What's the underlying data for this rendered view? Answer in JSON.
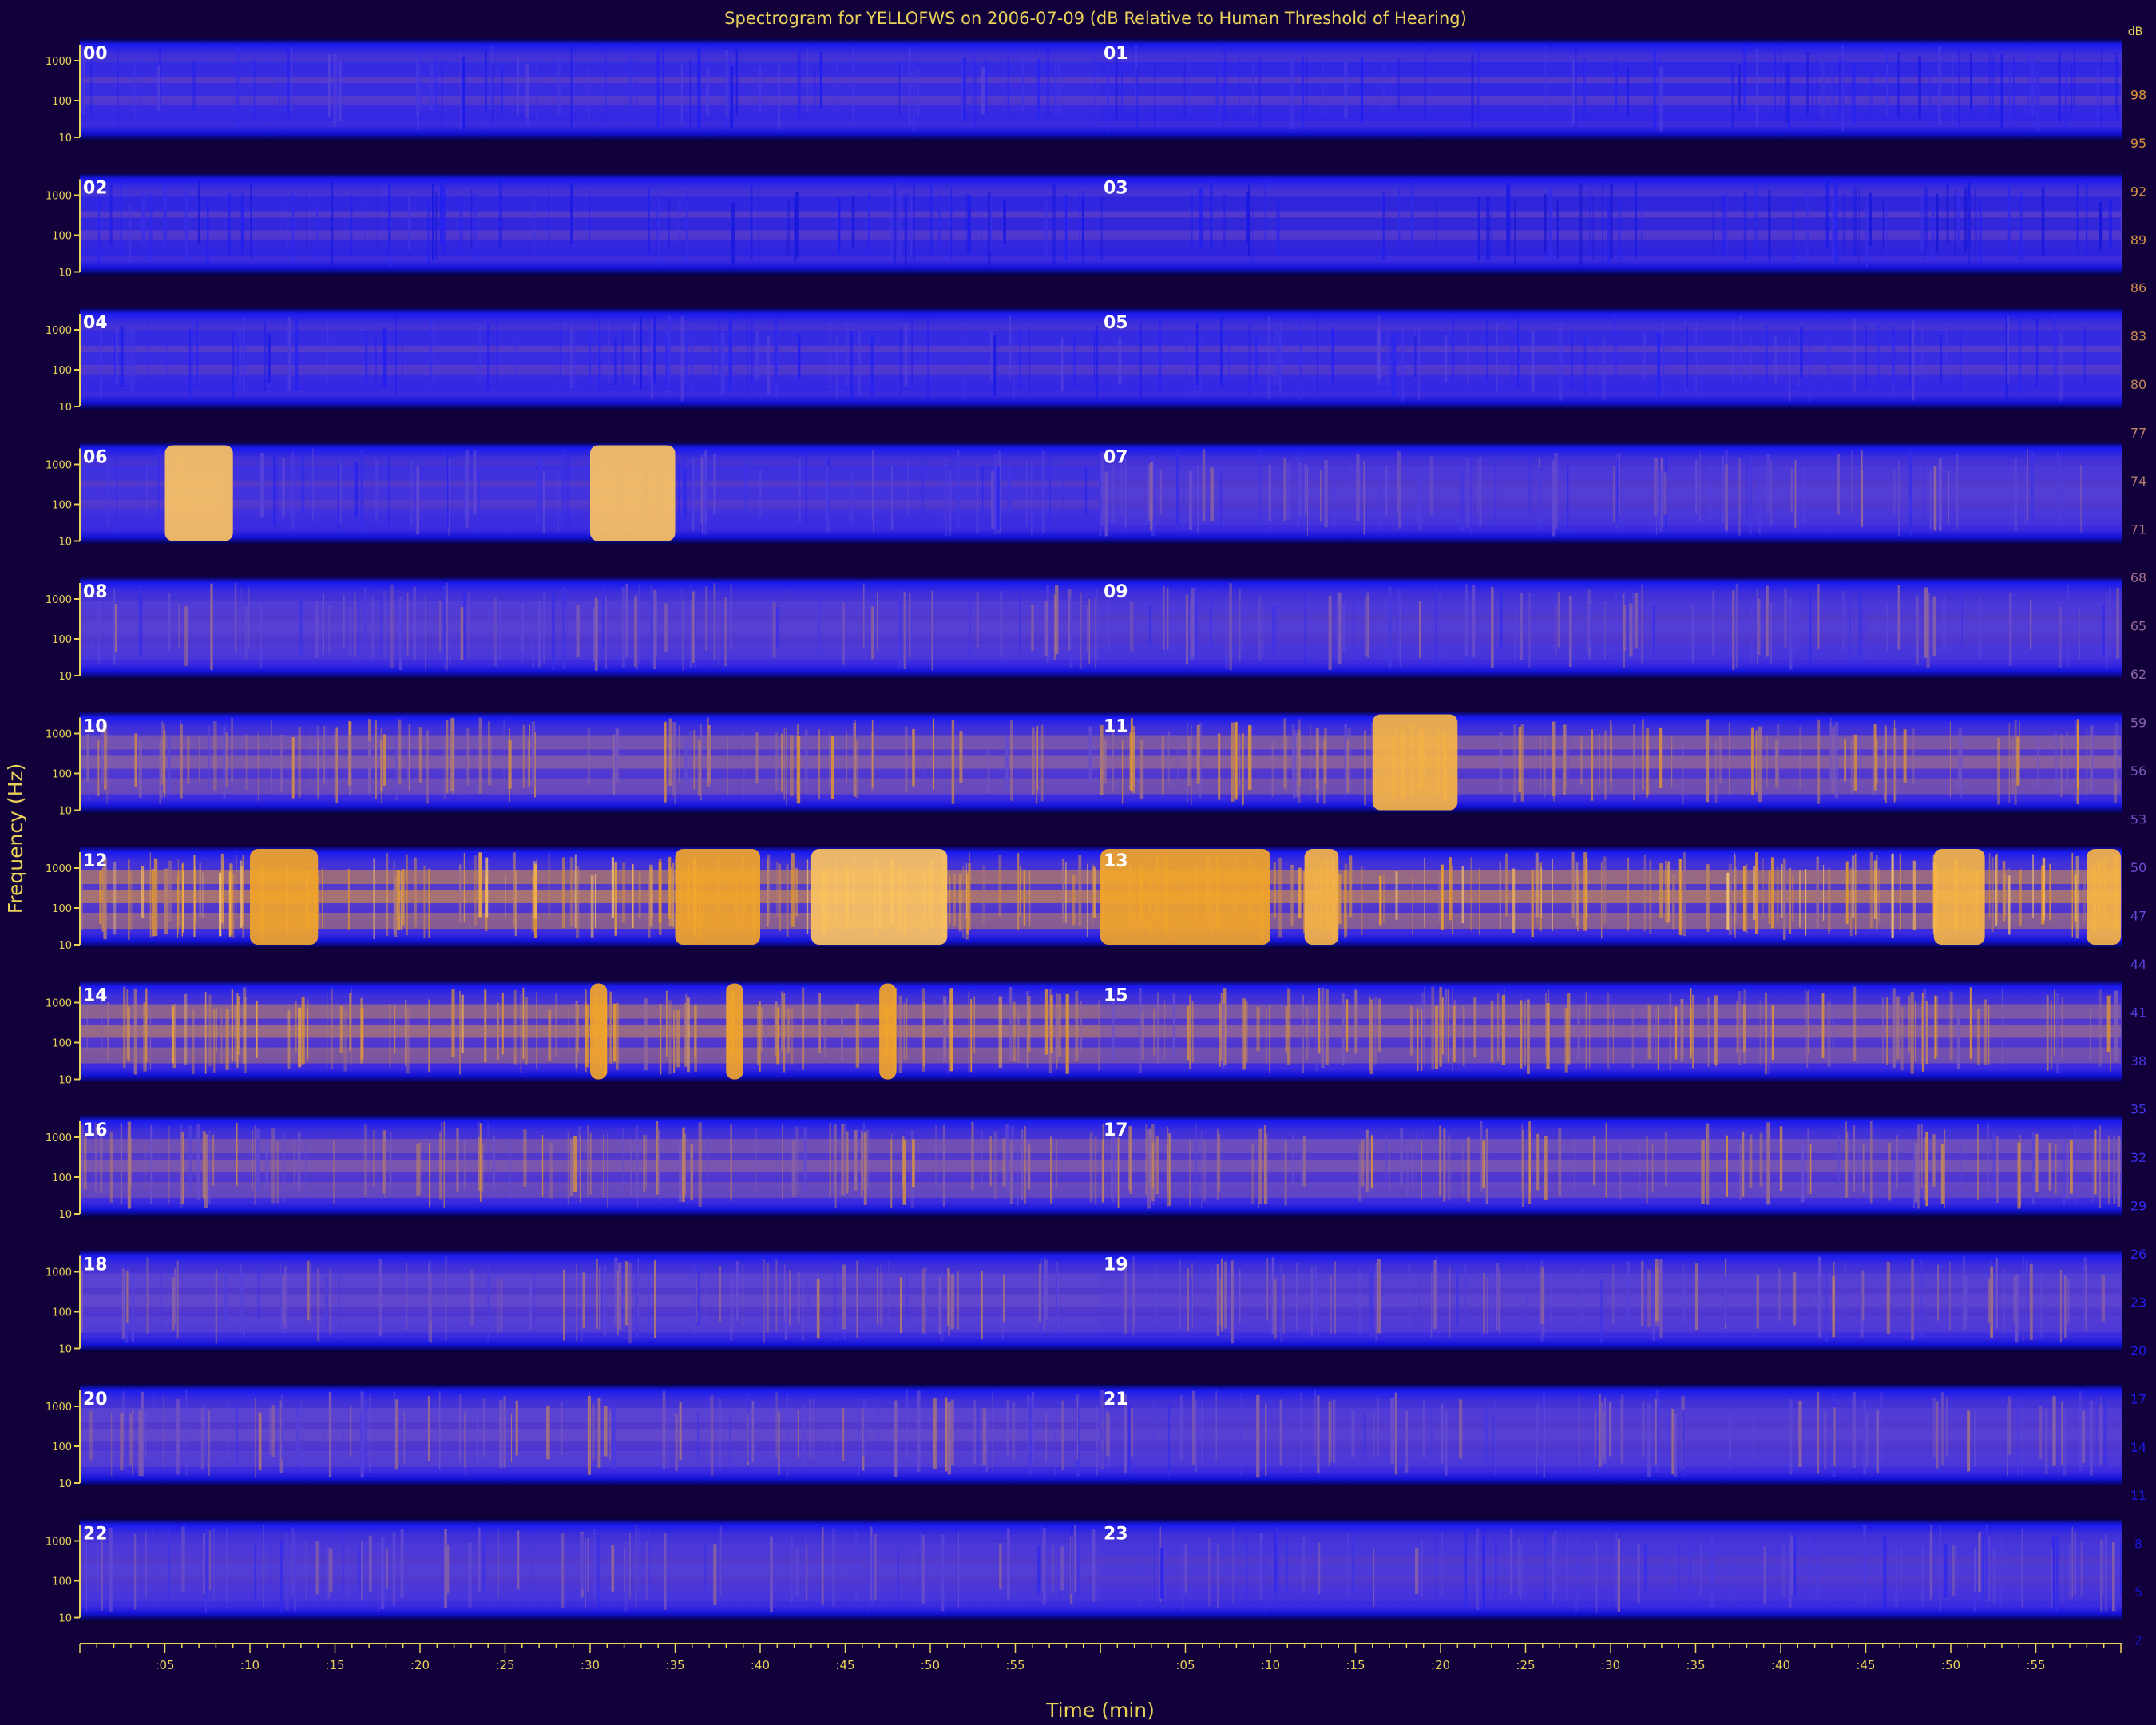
{
  "chart_data": {
    "type": "heatmap",
    "title": "Spectrogram for YELLOFWS on 2006-07-09 (dB Relative to Human Threshold of Hearing)",
    "xlabel": "Time (min)",
    "ylabel": "Frequency (Hz)",
    "colorbar_unit": "dB",
    "hours": [
      "00",
      "01",
      "02",
      "03",
      "04",
      "05",
      "06",
      "07",
      "08",
      "09",
      "10",
      "11",
      "12",
      "13",
      "14",
      "15",
      "16",
      "17",
      "18",
      "19",
      "20",
      "21",
      "22",
      "23"
    ],
    "x_tick_labels": [
      ":05",
      ":10",
      ":15",
      ":20",
      ":25",
      ":30",
      ":35",
      ":40",
      ":45",
      ":50",
      ":55"
    ],
    "y_tick_labels": [
      "1000",
      "100",
      "10"
    ],
    "colorbar_ticks": [
      98,
      95,
      92,
      89,
      86,
      83,
      80,
      77,
      74,
      71,
      68,
      65,
      62,
      59,
      56,
      53,
      50,
      47,
      44,
      41,
      38,
      35,
      32,
      29,
      26,
      23,
      20,
      17,
      14,
      11,
      8,
      5,
      2
    ],
    "colorbar_range": [
      0,
      100
    ],
    "colormap": [
      "#06004a",
      "#0a0aa8",
      "#1d1df5",
      "#6a4fd0",
      "#c88a55",
      "#f0a020",
      "#ffd27a"
    ],
    "hour_intensity": [
      0.3,
      0.28,
      0.26,
      0.24,
      0.3,
      0.3,
      0.34,
      0.4,
      0.42,
      0.4,
      0.55,
      0.58,
      0.74,
      0.72,
      0.64,
      0.58,
      0.54,
      0.52,
      0.46,
      0.44,
      0.46,
      0.42,
      0.4,
      0.38
    ],
    "loud_events": [
      {
        "hour": "06",
        "start_min": 5,
        "end_min": 9,
        "level": 0.95
      },
      {
        "hour": "06",
        "start_min": 30,
        "end_min": 35,
        "level": 0.95
      },
      {
        "hour": "11",
        "start_min": 16,
        "end_min": 21,
        "level": 0.9
      },
      {
        "hour": "12",
        "start_min": 10,
        "end_min": 14,
        "level": 0.85
      },
      {
        "hour": "12",
        "start_min": 35,
        "end_min": 40,
        "level": 0.85
      },
      {
        "hour": "12",
        "start_min": 43,
        "end_min": 51,
        "level": 0.95
      },
      {
        "hour": "13",
        "start_min": 0,
        "end_min": 10,
        "level": 0.85
      },
      {
        "hour": "13",
        "start_min": 12,
        "end_min": 14,
        "level": 0.9
      },
      {
        "hour": "13",
        "start_min": 49,
        "end_min": 52,
        "level": 0.9
      },
      {
        "hour": "13",
        "start_min": 58,
        "end_min": 60,
        "level": 0.9
      },
      {
        "hour": "14",
        "start_min": 30,
        "end_min": 31,
        "level": 0.85
      },
      {
        "hour": "14",
        "start_min": 38,
        "end_min": 39,
        "level": 0.85
      },
      {
        "hour": "14",
        "start_min": 47,
        "end_min": 48,
        "level": 0.85
      }
    ]
  }
}
